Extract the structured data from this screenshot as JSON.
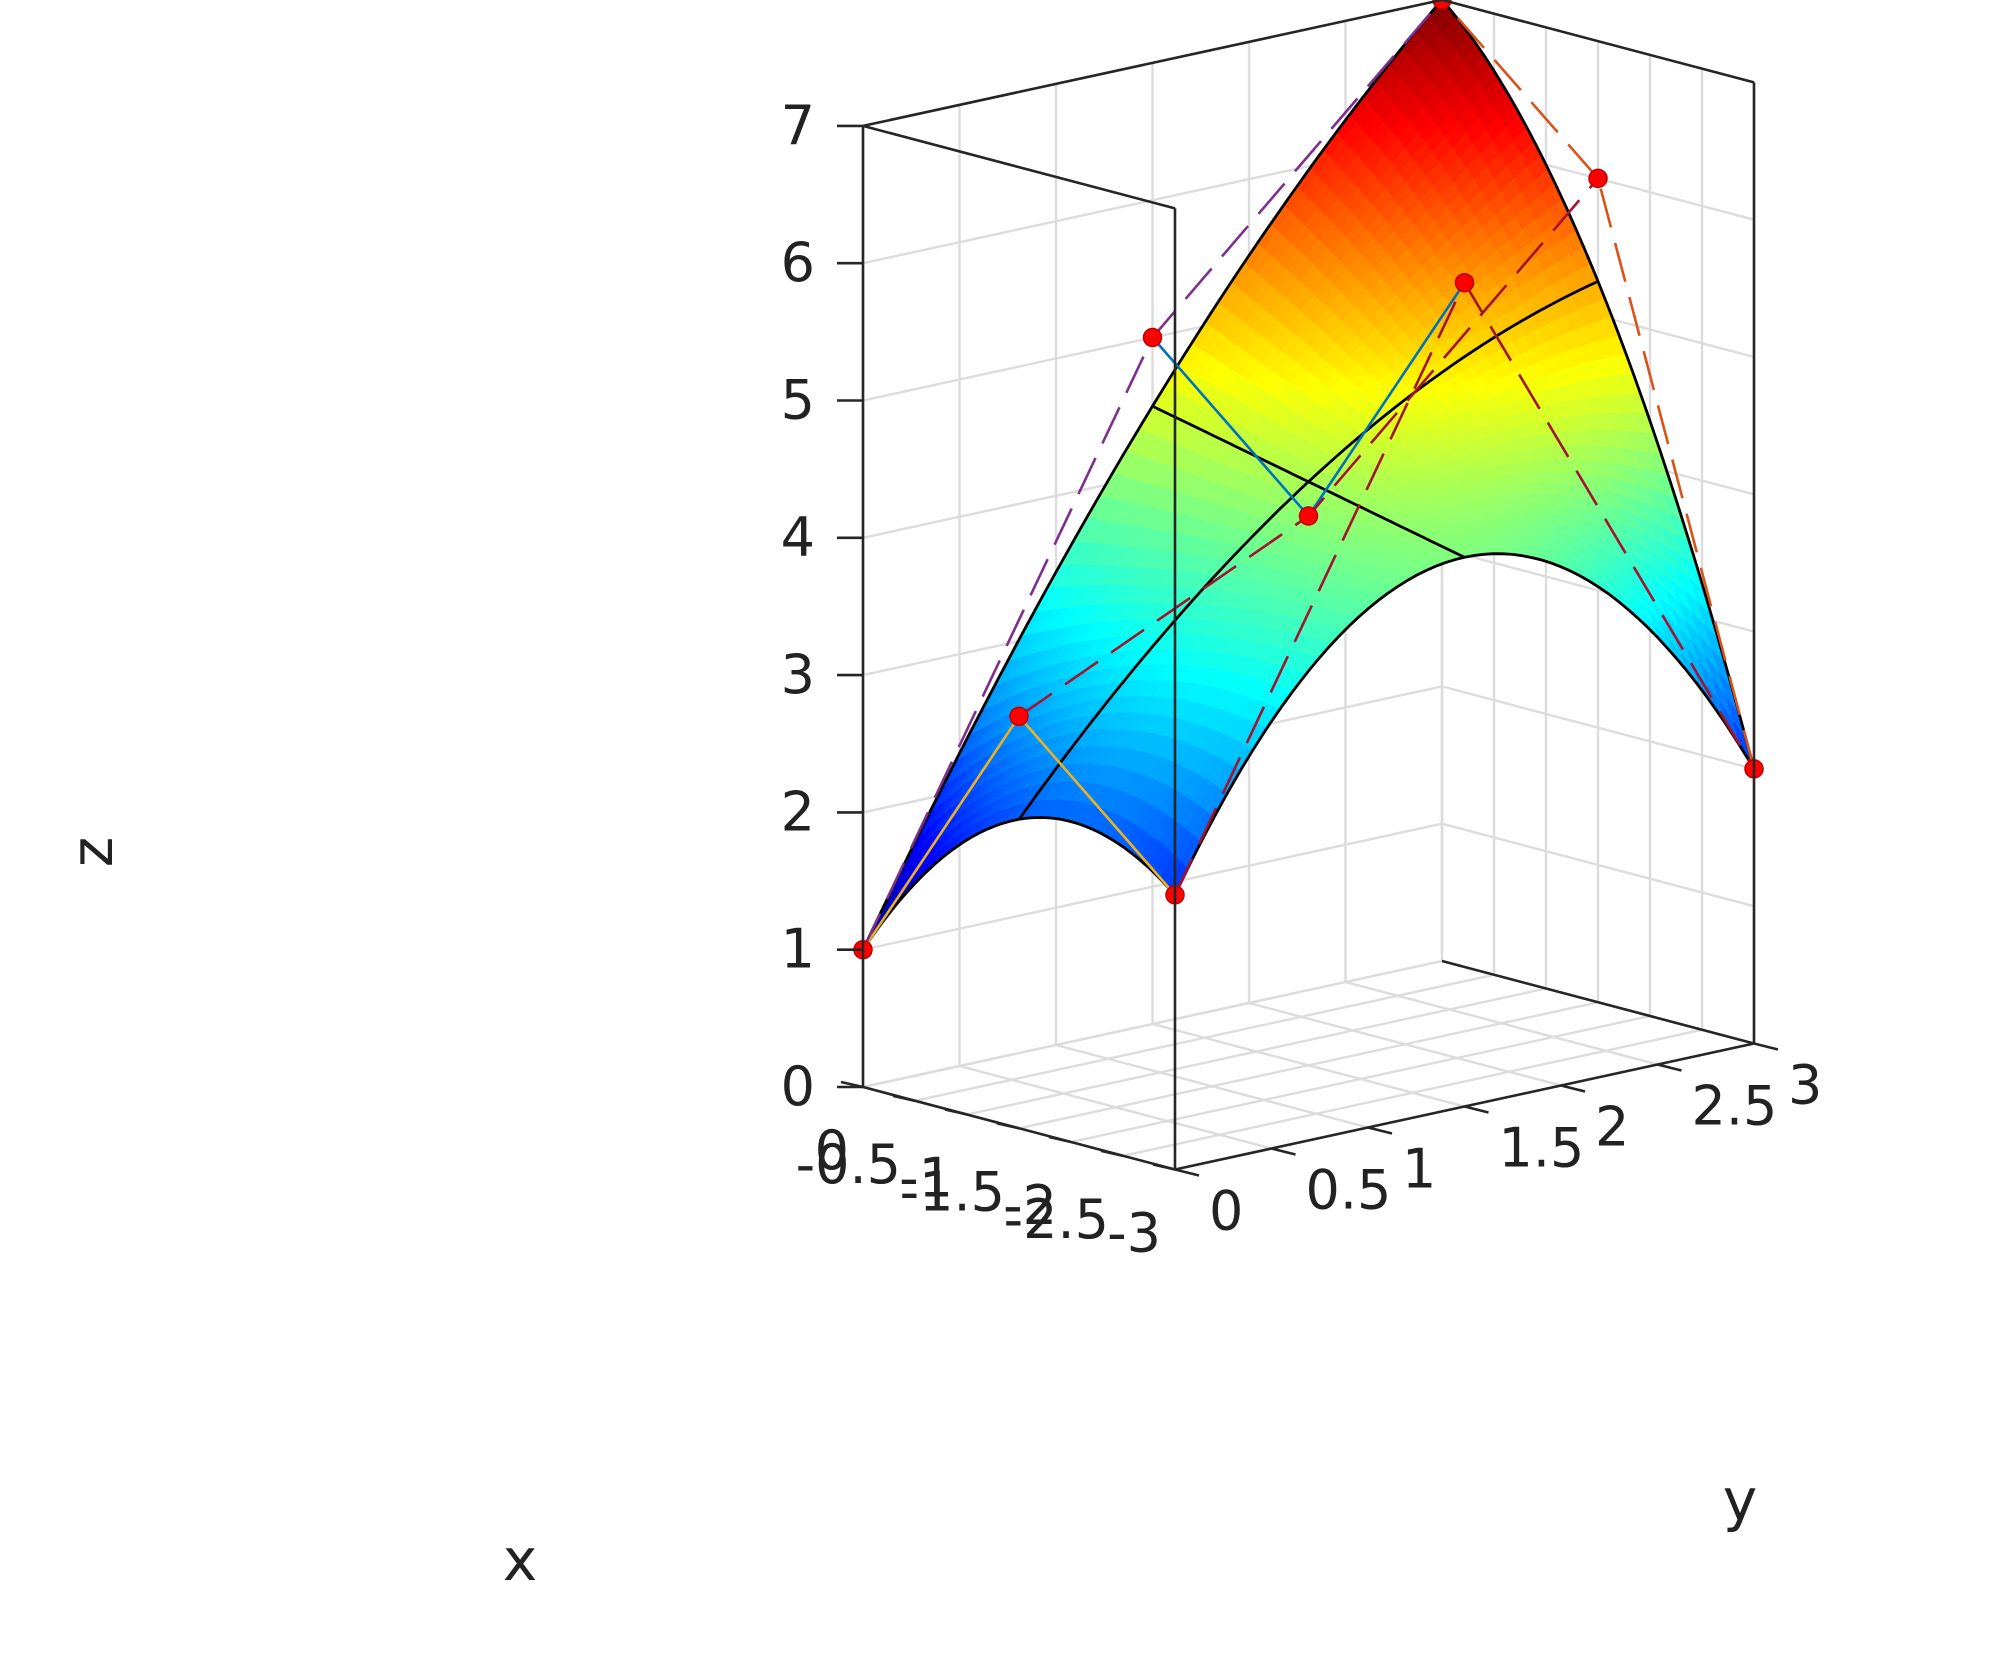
{
  "chart_data": {
    "type": "surface",
    "title": "",
    "xlabel": "x",
    "ylabel": "y",
    "zlabel": "z",
    "xlim": [
      -3,
      0
    ],
    "ylim": [
      0,
      3
    ],
    "zlim": [
      0,
      7
    ],
    "grid": true,
    "colormap": "jet",
    "x_ticks": [
      "-3",
      "-2.5",
      "-2",
      "-1.5",
      "-1",
      "-0.5",
      "0"
    ],
    "y_ticks": [
      "0",
      "0.5",
      "1",
      "1.5",
      "2",
      "2.5",
      "3"
    ],
    "z_ticks": [
      "0",
      "1",
      "2",
      "3",
      "4",
      "5",
      "6",
      "7"
    ],
    "control_points": [
      {
        "x": -3,
        "y": 0,
        "z": 2
      },
      {
        "x": -3,
        "y": 1.5,
        "z": 6
      },
      {
        "x": -3,
        "y": 3,
        "z": 2
      },
      {
        "x": -1.5,
        "y": 0,
        "z": 3
      },
      {
        "x": -1.5,
        "y": 1.5,
        "z": 4
      },
      {
        "x": -1.5,
        "y": 3,
        "z": 6
      },
      {
        "x": 0,
        "y": 0,
        "z": 1
      },
      {
        "x": 0,
        "y": 1.5,
        "z": 5
      },
      {
        "x": 0,
        "y": 3,
        "z": 7
      }
    ],
    "control_net_colors": [
      "#d95319",
      "#0072bd",
      "#edb120",
      "#a2142f",
      "#7e2f8e"
    ],
    "marker_color": "#ff0000",
    "boundary_color": "#000000"
  }
}
